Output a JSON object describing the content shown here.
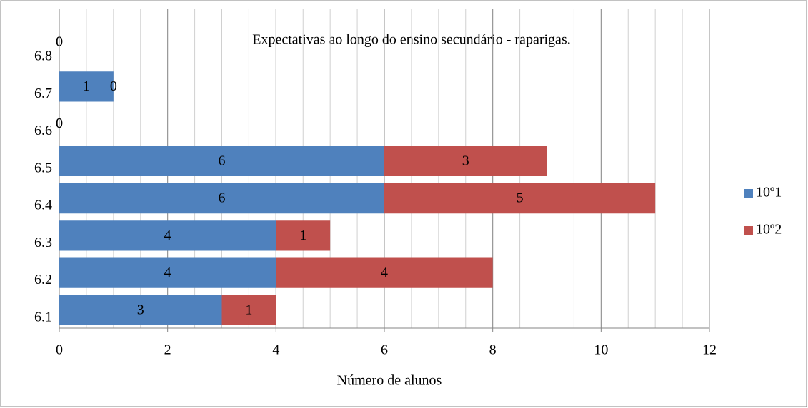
{
  "chart_data": {
    "type": "bar",
    "orientation": "horizontal",
    "stacked": true,
    "title": "Expectativas ao longo do ensino secundário - raparigas.",
    "xlabel": "Número de alunos",
    "categories": [
      "6.1",
      "6.2",
      "6.3",
      "6.4",
      "6.5",
      "6.6",
      "6.7",
      "6.8"
    ],
    "series": [
      {
        "name": "10º1",
        "color": "#4f81bd",
        "values": [
          3,
          4,
          4,
          6,
          6,
          0,
          1,
          0
        ]
      },
      {
        "name": "10º2",
        "color": "#c0504d",
        "values": [
          1,
          4,
          1,
          5,
          3,
          0,
          0,
          0
        ]
      }
    ],
    "xlim": [
      0,
      12
    ],
    "xticks": [
      0,
      2,
      4,
      6,
      8,
      10,
      12
    ],
    "xminor": 0.5,
    "grid": true,
    "legend": "right"
  }
}
